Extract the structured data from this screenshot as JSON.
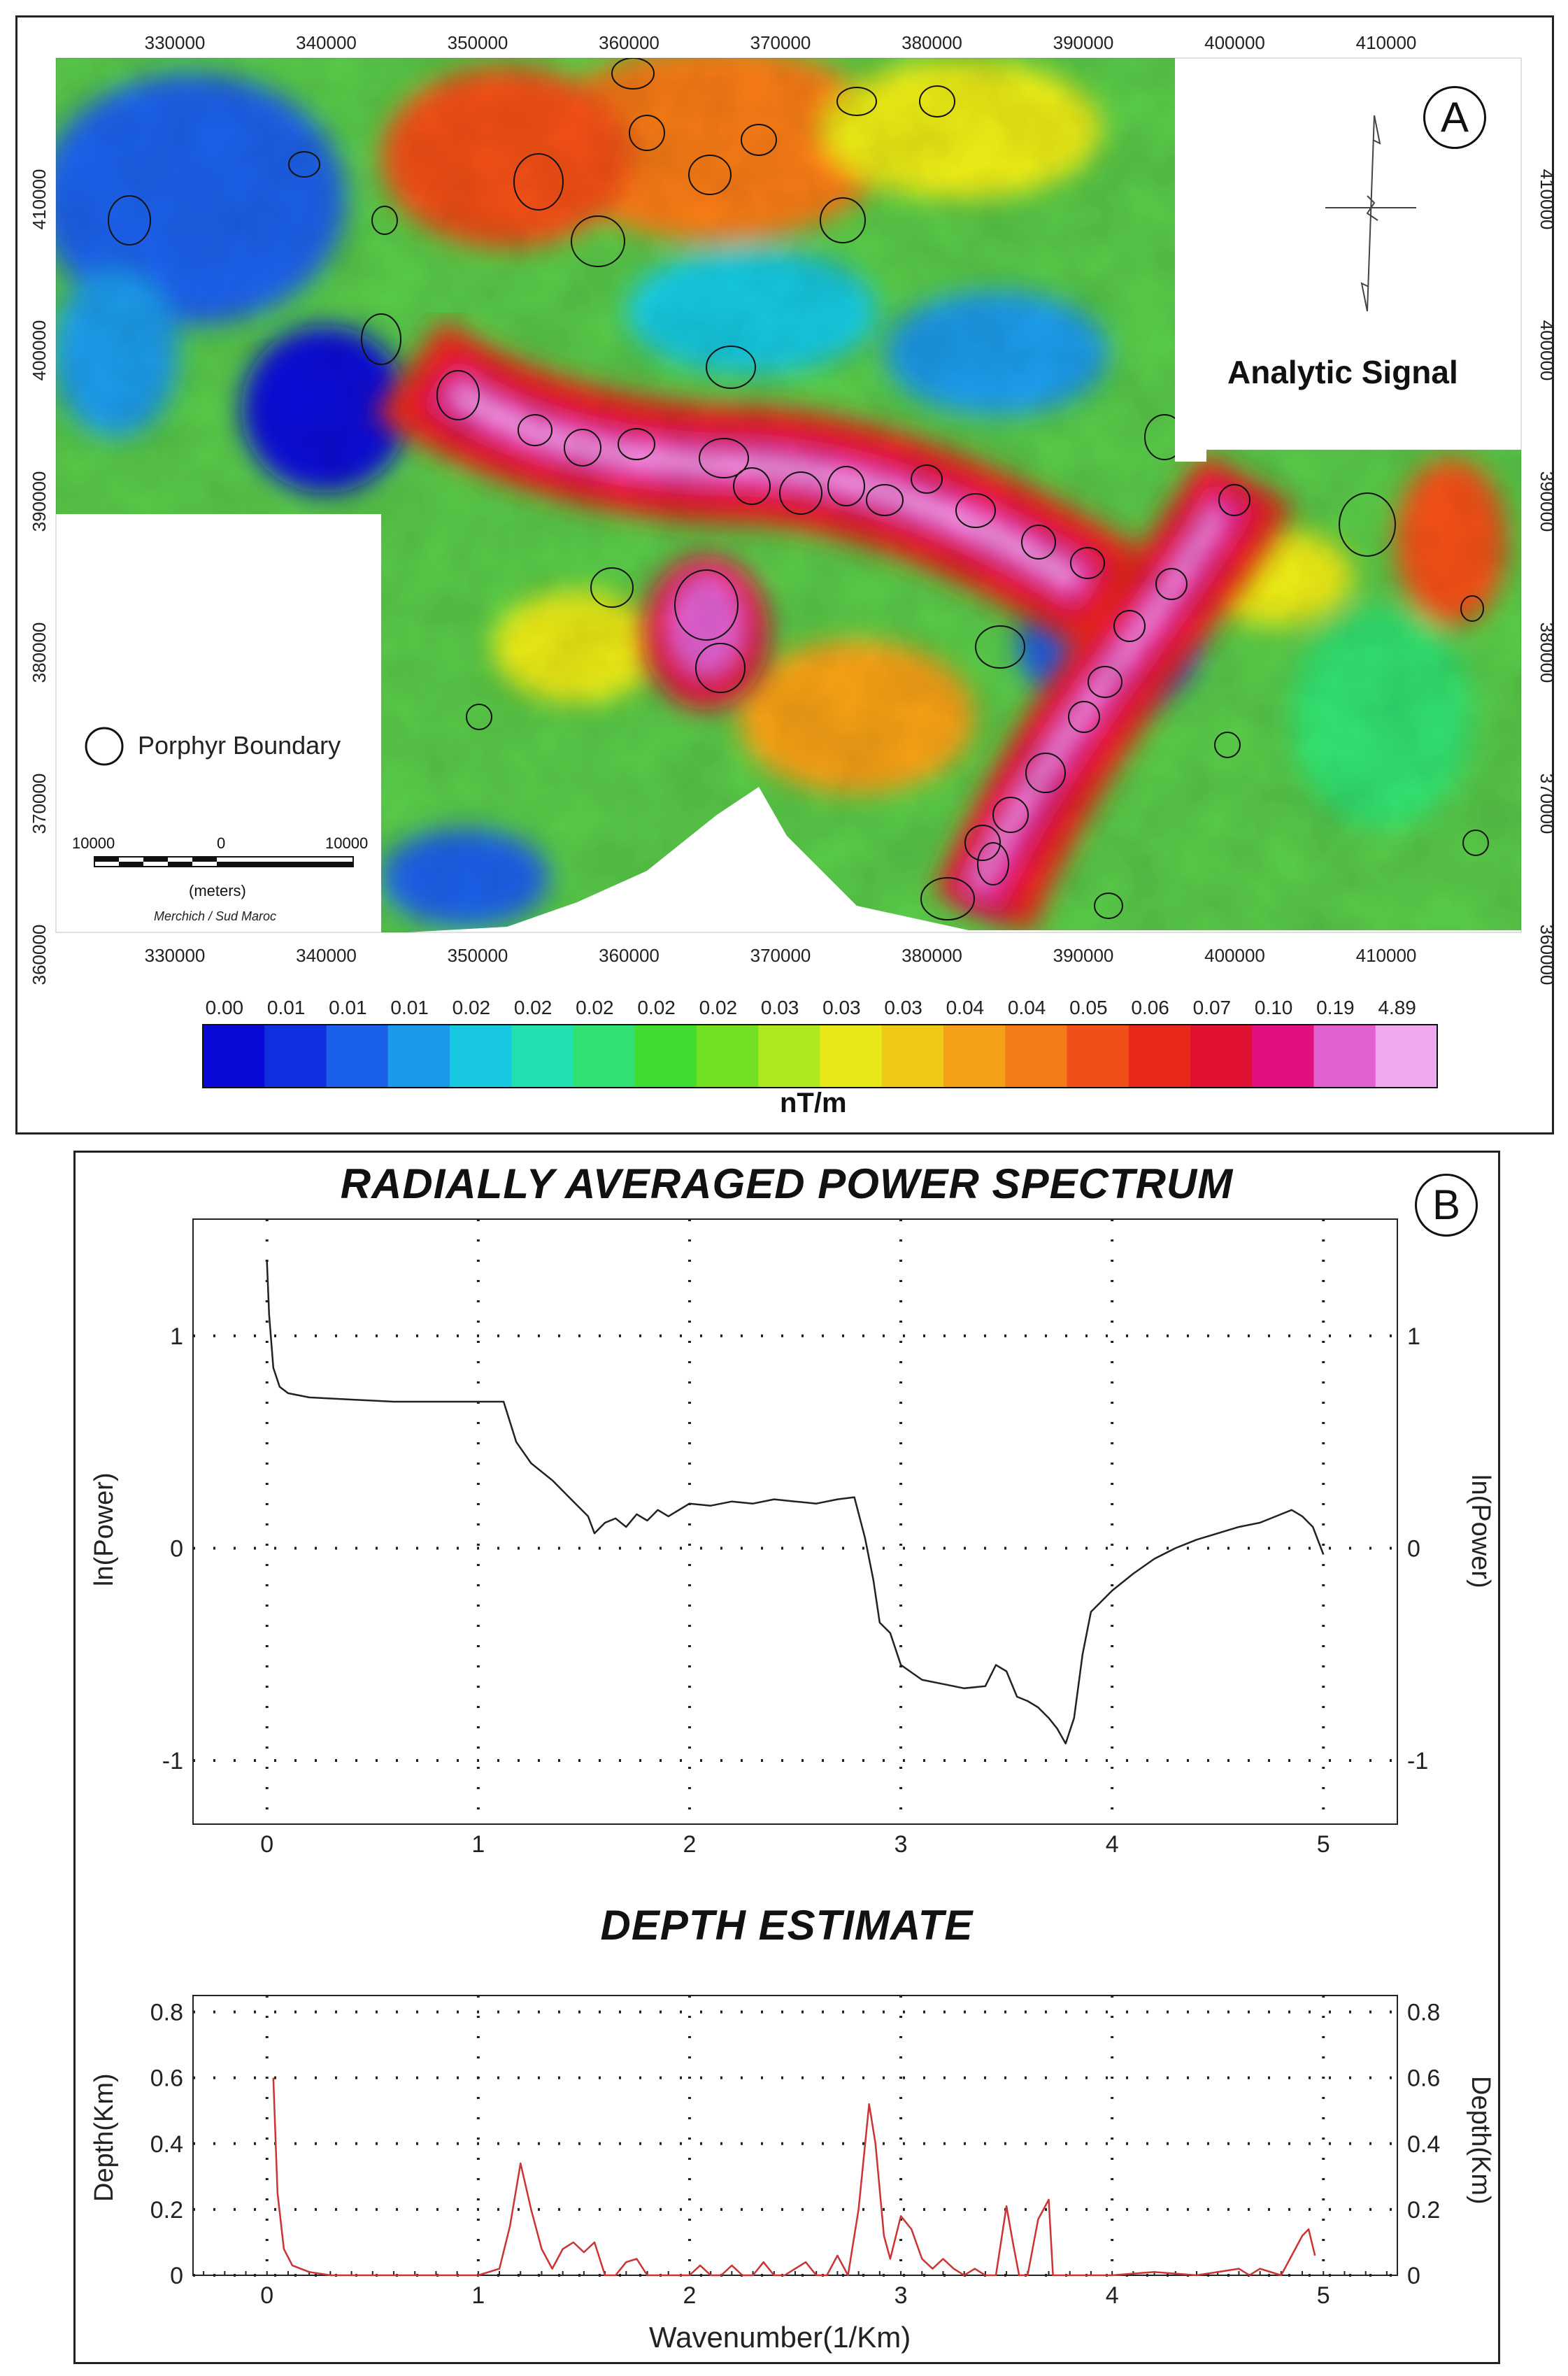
{
  "panel_a": {
    "label": "A",
    "title": "Analytic Signal",
    "legend_label": "Porphyr Boundary",
    "scale": {
      "left": "10000",
      "mid": "0",
      "right": "10000",
      "unit": "(meters)",
      "projection": "Merchich / Sud Maroc"
    },
    "x_ticks": [
      "330000",
      "340000",
      "350000",
      "360000",
      "370000",
      "380000",
      "390000",
      "400000",
      "410000"
    ],
    "y_ticks": [
      "410000",
      "400000",
      "390000",
      "380000",
      "370000",
      "360000"
    ],
    "colorbar": {
      "labels": [
        "0.00",
        "0.01",
        "0.01",
        "0.01",
        "0.02",
        "0.02",
        "0.02",
        "0.02",
        "0.02",
        "0.03",
        "0.03",
        "0.03",
        "0.04",
        "0.04",
        "0.05",
        "0.06",
        "0.07",
        "0.10",
        "0.19",
        "4.89"
      ],
      "unit": "nT/m",
      "colors": [
        "#0a0ad6",
        "#1030e0",
        "#1a60e8",
        "#1a9ae8",
        "#18c8e0",
        "#20e0b0",
        "#30e070",
        "#40dc30",
        "#70e020",
        "#b0e820",
        "#e8e818",
        "#f0c818",
        "#f5a018",
        "#f57a18",
        "#f05018",
        "#e82818",
        "#e01030",
        "#e01080",
        "#e060d0",
        "#f0a8f0"
      ]
    }
  },
  "panel_b": {
    "label": "B",
    "spectrum_title": "RADIALLY AVERAGED POWER SPECTRUM",
    "depth_title": "DEPTH ESTIMATE",
    "spectrum_ylabel": "ln(Power)",
    "depth_ylabel": "Depth(Km)",
    "xlabel": "Wavenumber(1/Km)"
  },
  "chart_data": [
    {
      "type": "line",
      "title": "RADIALLY AVERAGED POWER SPECTRUM",
      "xlabel": "",
      "ylabel": "ln(Power)",
      "xlim": [
        -0.35,
        5.35
      ],
      "ylim": [
        -1.3,
        1.55
      ],
      "x_ticks": [
        0,
        1,
        2,
        3,
        4,
        5
      ],
      "y_ticks": [
        -1,
        0,
        1
      ],
      "grid": true,
      "series": [
        {
          "color": "#222222",
          "x": [
            0.0,
            0.01,
            0.03,
            0.06,
            0.1,
            0.2,
            0.4,
            0.6,
            0.8,
            1.0,
            1.12,
            1.18,
            1.25,
            1.35,
            1.45,
            1.52,
            1.55,
            1.6,
            1.65,
            1.7,
            1.75,
            1.8,
            1.85,
            1.9,
            2.0,
            2.1,
            2.2,
            2.3,
            2.4,
            2.5,
            2.6,
            2.7,
            2.78,
            2.83,
            2.87,
            2.9,
            2.95,
            3.0,
            3.1,
            3.2,
            3.3,
            3.4,
            3.45,
            3.5,
            3.55,
            3.6,
            3.65,
            3.7,
            3.74,
            3.78,
            3.82,
            3.86,
            3.9,
            4.0,
            4.1,
            4.2,
            4.3,
            4.4,
            4.5,
            4.6,
            4.7,
            4.8,
            4.85,
            4.9,
            4.95,
            5.0
          ],
          "y": [
            1.35,
            1.1,
            0.85,
            0.76,
            0.73,
            0.71,
            0.7,
            0.69,
            0.69,
            0.69,
            0.69,
            0.5,
            0.4,
            0.32,
            0.22,
            0.15,
            0.07,
            0.12,
            0.14,
            0.1,
            0.16,
            0.13,
            0.18,
            0.15,
            0.21,
            0.2,
            0.22,
            0.21,
            0.23,
            0.22,
            0.21,
            0.23,
            0.24,
            0.05,
            -0.15,
            -0.35,
            -0.4,
            -0.55,
            -0.62,
            -0.64,
            -0.66,
            -0.65,
            -0.55,
            -0.58,
            -0.7,
            -0.72,
            -0.75,
            -0.8,
            -0.85,
            -0.92,
            -0.8,
            -0.5,
            -0.3,
            -0.2,
            -0.12,
            -0.05,
            0.0,
            0.04,
            0.07,
            0.1,
            0.12,
            0.16,
            0.18,
            0.15,
            0.1,
            -0.03
          ]
        }
      ]
    },
    {
      "type": "line",
      "title": "DEPTH ESTIMATE",
      "xlabel": "Wavenumber(1/Km)",
      "ylabel": "Depth(Km)",
      "xlim": [
        -0.35,
        5.35
      ],
      "ylim": [
        0,
        0.85
      ],
      "x_ticks": [
        0,
        1,
        2,
        3,
        4,
        5
      ],
      "y_ticks": [
        0,
        0.2,
        0.4,
        0.6,
        0.8
      ],
      "grid": true,
      "series": [
        {
          "color": "#cc3333",
          "x": [
            0.03,
            0.05,
            0.08,
            0.12,
            0.2,
            0.3,
            0.5,
            0.8,
            1.0,
            1.05,
            1.1,
            1.15,
            1.2,
            1.25,
            1.3,
            1.35,
            1.4,
            1.45,
            1.5,
            1.55,
            1.6,
            1.65,
            1.7,
            1.75,
            1.8,
            1.85,
            1.9,
            2.0,
            2.05,
            2.1,
            2.15,
            2.2,
            2.25,
            2.3,
            2.35,
            2.4,
            2.45,
            2.5,
            2.55,
            2.6,
            2.65,
            2.7,
            2.75,
            2.8,
            2.85,
            2.88,
            2.92,
            2.95,
            3.0,
            3.05,
            3.1,
            3.15,
            3.2,
            3.25,
            3.3,
            3.35,
            3.4,
            3.45,
            3.5,
            3.53,
            3.56,
            3.6,
            3.65,
            3.7,
            3.72,
            3.75,
            3.8,
            3.9,
            4.0,
            4.2,
            4.4,
            4.6,
            4.65,
            4.7,
            4.8,
            4.9,
            4.93,
            4.96
          ],
          "y": [
            0.6,
            0.25,
            0.08,
            0.03,
            0.01,
            0.0,
            0.0,
            0.0,
            0.0,
            0.01,
            0.02,
            0.15,
            0.34,
            0.2,
            0.08,
            0.02,
            0.08,
            0.1,
            0.07,
            0.1,
            0.0,
            0.0,
            0.04,
            0.05,
            0.0,
            0.0,
            0.0,
            0.0,
            0.03,
            0.0,
            0.0,
            0.03,
            0.0,
            0.0,
            0.04,
            0.0,
            0.0,
            0.02,
            0.04,
            0.0,
            0.0,
            0.06,
            0.0,
            0.2,
            0.52,
            0.4,
            0.12,
            0.05,
            0.18,
            0.14,
            0.05,
            0.02,
            0.05,
            0.02,
            0.0,
            0.02,
            0.0,
            0.0,
            0.21,
            0.1,
            0.0,
            0.0,
            0.17,
            0.23,
            0.0,
            0.0,
            0.0,
            0.0,
            0.0,
            0.01,
            0.0,
            0.02,
            0.0,
            0.02,
            0.0,
            0.12,
            0.14,
            0.06
          ]
        }
      ]
    }
  ]
}
